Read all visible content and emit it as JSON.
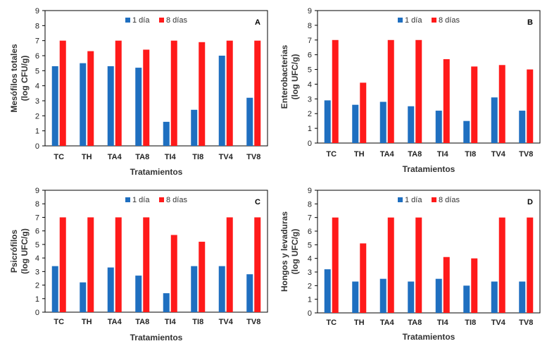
{
  "chart_data": [
    {
      "type": "bar",
      "letter": "A",
      "categories": [
        "TC",
        "TH",
        "TA4",
        "TA8",
        "TI4",
        "TI8",
        "TV4",
        "TV8"
      ],
      "series": [
        {
          "name": "1 día",
          "values": [
            5.3,
            5.5,
            5.3,
            5.2,
            1.6,
            2.4,
            6.0,
            3.2
          ]
        },
        {
          "name": "8 días",
          "values": [
            7.0,
            6.3,
            7.0,
            6.4,
            7.0,
            6.9,
            7.0,
            7.0
          ]
        }
      ],
      "xlabel": "Tratamientos",
      "ylabel_lines": [
        "Mesófilos totales",
        "(log CFU/g)"
      ],
      "ylim": [
        0,
        9
      ],
      "yticks": [
        "0",
        "1",
        "2",
        "3",
        "4",
        "5",
        "6",
        "7",
        "8",
        "9"
      ],
      "legend_position": "top-center",
      "grid": false,
      "colors": {
        "1 día": "#1f6fc0",
        "8 días": "#ff1a1a"
      }
    },
    {
      "type": "bar",
      "letter": "B",
      "categories": [
        "TC",
        "TH",
        "TA4",
        "TA8",
        "TI4",
        "TI8",
        "TV4",
        "TV8"
      ],
      "series": [
        {
          "name": "1 día",
          "values": [
            2.9,
            2.6,
            2.8,
            2.5,
            2.2,
            1.5,
            3.1,
            2.2
          ]
        },
        {
          "name": "8 días",
          "values": [
            7.0,
            4.1,
            7.0,
            7.0,
            5.7,
            5.2,
            5.3,
            5.0
          ]
        }
      ],
      "xlabel": "Tratamientos",
      "ylabel_lines": [
        "Enterobacterias",
        "(log UFC/g)"
      ],
      "ylim": [
        0,
        9
      ],
      "yticks": [
        "0",
        "1",
        "2",
        "3",
        "4",
        "5",
        "6",
        "7",
        "8",
        "9"
      ],
      "legend_position": "top-center",
      "grid": false,
      "colors": {
        "1 día": "#1f6fc0",
        "8 días": "#ff1a1a"
      }
    },
    {
      "type": "bar",
      "letter": "C",
      "categories": [
        "TC",
        "TH",
        "TA4",
        "TA8",
        "TI4",
        "TI8",
        "TV4",
        "TV8"
      ],
      "series": [
        {
          "name": "1 día",
          "values": [
            3.4,
            2.2,
            3.3,
            2.7,
            1.4,
            3.4,
            3.4,
            2.8
          ]
        },
        {
          "name": "8 días",
          "values": [
            7.0,
            7.0,
            7.0,
            7.0,
            5.7,
            5.2,
            7.0,
            7.0
          ]
        }
      ],
      "xlabel": "Tratamientos",
      "ylabel_lines": [
        "Psicrófilos",
        "(log UFC/g)"
      ],
      "ylim": [
        0,
        9
      ],
      "yticks": [
        "0",
        "1",
        "2",
        "3",
        "4",
        "5",
        "6",
        "7",
        "8",
        "9"
      ],
      "legend_position": "top-center",
      "grid": false,
      "colors": {
        "1 día": "#1f6fc0",
        "8 días": "#ff1a1a"
      }
    },
    {
      "type": "bar",
      "letter": "D",
      "categories": [
        "TC",
        "TH",
        "TA4",
        "TA8",
        "TI4",
        "TI8",
        "TV4",
        "TV8"
      ],
      "series": [
        {
          "name": "1 día",
          "values": [
            3.2,
            2.3,
            2.5,
            2.3,
            2.5,
            2.0,
            2.3,
            2.3
          ]
        },
        {
          "name": "8 días",
          "values": [
            7.0,
            5.1,
            7.0,
            7.0,
            4.1,
            4.0,
            7.0,
            7.0
          ]
        }
      ],
      "xlabel": "Tratamientos",
      "ylabel_lines": [
        "Hongos y levaduras",
        "(log UFC/g)"
      ],
      "ylim": [
        0,
        9
      ],
      "yticks": [
        "0",
        "1",
        "2",
        "3",
        "4",
        "5",
        "6",
        "7",
        "8",
        "9"
      ],
      "legend_position": "top-center",
      "grid": false,
      "colors": {
        "1 día": "#1f6fc0",
        "8 días": "#ff1a1a"
      }
    }
  ]
}
